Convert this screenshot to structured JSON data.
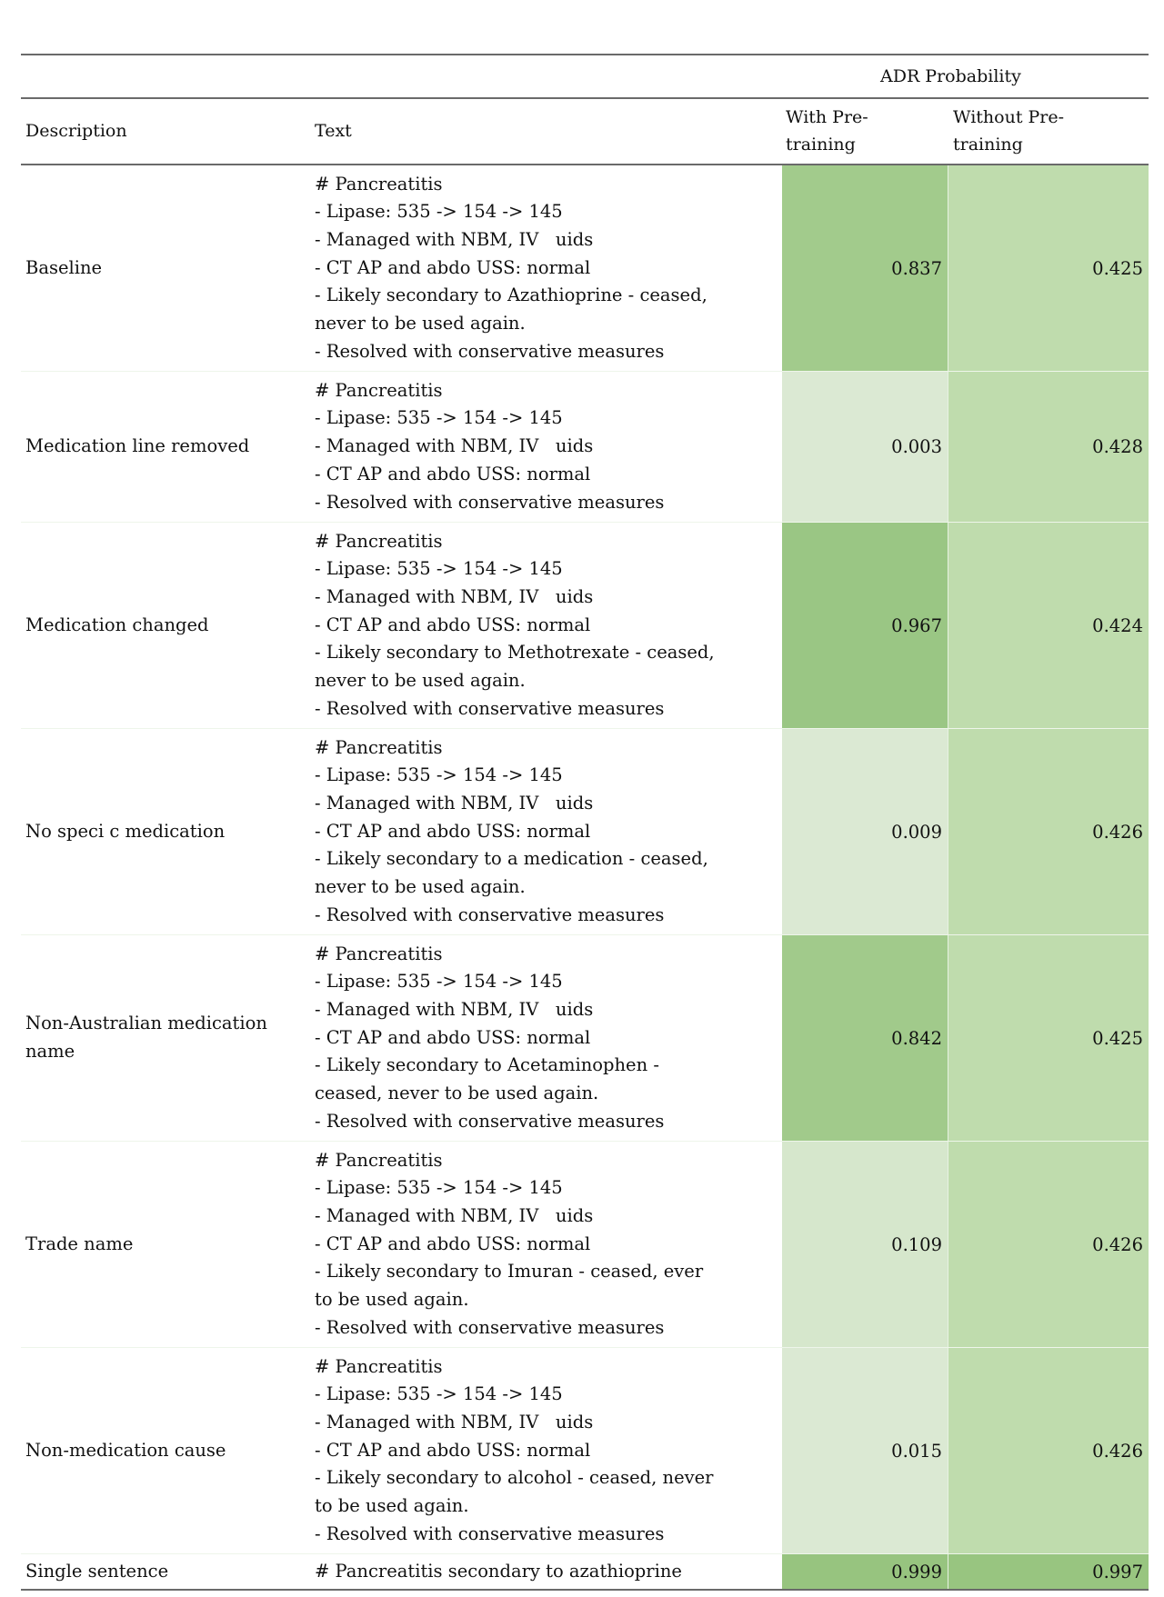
{
  "table": {
    "group_header": "ADR Probability",
    "columns": [
      "Description",
      "Text",
      "With Pre-\ntraining",
      "Without Pre-\ntraining"
    ],
    "col_with": [
      "With Pre-",
      "training"
    ],
    "col_without": [
      "Without Pre-",
      "training"
    ],
    "rows": [
      {
        "description": "Baseline",
        "text": [
          "# Pancreatitis",
          "- Lipase: 535 -> 154 -> 145",
          "- Managed with NBM, IV   uids",
          "- CT AP and abdo USS: normal",
          "- Likely secondary to Azathioprine - ceased,",
          "never to be used again.",
          "- Resolved with conservative measures"
        ],
        "with": "0.837",
        "without": "0.425",
        "with_color": "#a2cb8c",
        "without_color": "#bfdcad"
      },
      {
        "description": "Medication line removed",
        "text": [
          "# Pancreatitis",
          "- Lipase: 535 -> 154 -> 145",
          "- Managed with NBM, IV   uids",
          "- CT AP and abdo USS: normal",
          "- Resolved with conservative measures"
        ],
        "with": "0.003",
        "without": "0.428",
        "with_color": "#dbe9d3",
        "without_color": "#bfdcad"
      },
      {
        "description": "Medication changed",
        "text": [
          "# Pancreatitis",
          "- Lipase: 535 -> 154 -> 145",
          "- Managed with NBM, IV   uids",
          "- CT AP and abdo USS: normal",
          "- Likely secondary to Methotrexate - ceased,",
          "never to be used again.",
          "- Resolved with conservative measures"
        ],
        "with": "0.967",
        "without": "0.424",
        "with_color": "#9ac684",
        "without_color": "#bfdcad"
      },
      {
        "description": "No speci  c medication",
        "text": [
          "# Pancreatitis",
          "- Lipase: 535 -> 154 -> 145",
          "- Managed with NBM, IV   uids",
          "- CT AP and abdo USS: normal",
          "- Likely secondary to a medication - ceased,",
          "never to be used again.",
          "- Resolved with conservative measures"
        ],
        "with": "0.009",
        "without": "0.426",
        "with_color": "#dbe9d3",
        "without_color": "#bfdcad"
      },
      {
        "description": "Non-Australian medication name",
        "text": [
          "# Pancreatitis",
          "- Lipase: 535 -> 154 -> 145",
          "- Managed with NBM, IV   uids",
          "- CT AP and abdo USS: normal",
          "- Likely secondary to Acetaminophen -",
          "ceased, never to be used again.",
          "- Resolved with conservative measures"
        ],
        "with": "0.842",
        "without": "0.425",
        "with_color": "#a1ca8b",
        "without_color": "#bfdcad"
      },
      {
        "description": "Trade name",
        "text": [
          "# Pancreatitis",
          "- Lipase: 535 -> 154 -> 145",
          "- Managed with NBM, IV   uids",
          "- CT AP and abdo USS: normal",
          "- Likely secondary to Imuran - ceased, ever",
          "to be used again.",
          "- Resolved with conservative measures"
        ],
        "with": "0.109",
        "without": "0.426",
        "with_color": "#d6e7cc",
        "without_color": "#bfdcad"
      },
      {
        "description": "Non-medication cause",
        "text": [
          "# Pancreatitis",
          "- Lipase: 535 -> 154 -> 145",
          "- Managed with NBM, IV   uids",
          "- CT AP and abdo USS: normal",
          "- Likely secondary to alcohol - ceased, never",
          "to be used again.",
          "- Resolved with conservative measures"
        ],
        "with": "0.015",
        "without": "0.426",
        "with_color": "#dbe9d3",
        "without_color": "#bfdcad"
      },
      {
        "description": "Single sentence",
        "text": [
          "# Pancreatitis secondary to azathioprine"
        ],
        "with": "0.999",
        "without": "0.997",
        "with_color": "#97c47f",
        "without_color": "#98c580"
      }
    ]
  }
}
